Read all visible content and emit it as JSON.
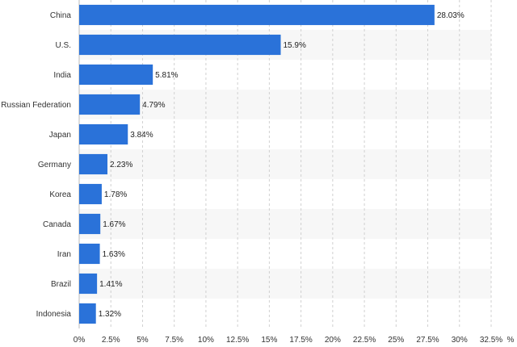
{
  "chart_data": {
    "type": "bar",
    "orientation": "horizontal",
    "categories": [
      "China",
      "U.S.",
      "India",
      "Russian Federation",
      "Japan",
      "Germany",
      "Korea",
      "Canada",
      "Iran",
      "Brazil",
      "Indonesia"
    ],
    "values": [
      28.03,
      15.9,
      5.81,
      4.79,
      3.84,
      2.23,
      1.78,
      1.67,
      1.63,
      1.41,
      1.32
    ],
    "value_labels": [
      "28.03%",
      "15.9%",
      "5.81%",
      "4.79%",
      "3.84%",
      "2.23%",
      "1.78%",
      "1.67%",
      "1.63%",
      "1.41%",
      "1.32%"
    ],
    "x_ticks": [
      "0%",
      "2.5%",
      "5%",
      "7.5%",
      "10%",
      "12.5%",
      "15%",
      "17.5%",
      "20%",
      "22.5%",
      "25%",
      "27.5%",
      "30%",
      "32.5%"
    ],
    "x_unit": "%",
    "xlim": [
      0,
      32.5
    ],
    "grid": true,
    "bar_color": "#2a72d9",
    "stripe_color": "#f7f7f7",
    "grid_color": "#d0d0d0",
    "title": "",
    "xlabel": "",
    "ylabel": ""
  }
}
